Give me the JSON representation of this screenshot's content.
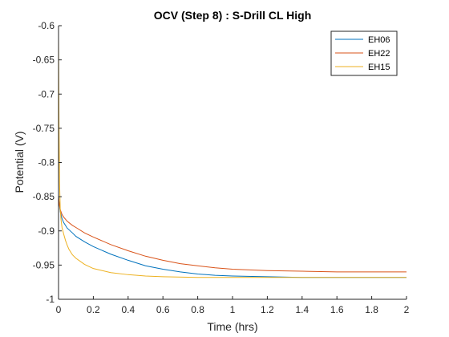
{
  "chart_data": {
    "type": "line",
    "title": "OCV (Step 8) : S-Drill CL High",
    "xlabel": "Time (hrs)",
    "ylabel": "Potential (V)",
    "xlim": [
      0,
      2
    ],
    "ylim": [
      -1,
      -0.6
    ],
    "xticks": [
      "0",
      "0.2",
      "0.4",
      "0.6",
      "0.8",
      "1",
      "1.2",
      "1.4",
      "1.6",
      "1.8",
      "2"
    ],
    "yticks": [
      "-0.6",
      "-0.65",
      "-0.7",
      "-0.75",
      "-0.8",
      "-0.85",
      "-0.9",
      "-0.95",
      "-1"
    ],
    "grid": false,
    "legend_position": "top-right",
    "series": [
      {
        "name": "EH06",
        "color": "#0072BD",
        "x": [
          0,
          0.005,
          0.01,
          0.02,
          0.03,
          0.05,
          0.08,
          0.1,
          0.15,
          0.2,
          0.3,
          0.4,
          0.5,
          0.6,
          0.7,
          0.8,
          0.9,
          1.0,
          1.2,
          1.4,
          1.6,
          1.8,
          2.0
        ],
        "y": [
          -0.85,
          -0.862,
          -0.872,
          -0.882,
          -0.888,
          -0.896,
          -0.903,
          -0.908,
          -0.916,
          -0.923,
          -0.934,
          -0.943,
          -0.951,
          -0.956,
          -0.96,
          -0.963,
          -0.965,
          -0.966,
          -0.967,
          -0.968,
          -0.968,
          -0.968,
          -0.968
        ]
      },
      {
        "name": "EH22",
        "color": "#D95319",
        "x": [
          0,
          0.005,
          0.01,
          0.02,
          0.03,
          0.05,
          0.08,
          0.1,
          0.15,
          0.2,
          0.3,
          0.4,
          0.5,
          0.6,
          0.7,
          0.8,
          0.9,
          1.0,
          1.2,
          1.4,
          1.6,
          1.8,
          2.0
        ],
        "y": [
          -0.85,
          -0.862,
          -0.869,
          -0.876,
          -0.88,
          -0.886,
          -0.892,
          -0.895,
          -0.903,
          -0.909,
          -0.92,
          -0.929,
          -0.937,
          -0.943,
          -0.948,
          -0.951,
          -0.954,
          -0.956,
          -0.958,
          -0.959,
          -0.96,
          -0.96,
          -0.96
        ]
      },
      {
        "name": "EH15",
        "color": "#EDB120",
        "x": [
          0,
          0.003,
          0.006,
          0.01,
          0.015,
          0.02,
          0.03,
          0.04,
          0.05,
          0.06,
          0.08,
          0.1,
          0.15,
          0.2,
          0.3,
          0.4,
          0.5,
          0.6,
          0.8,
          1.0,
          1.2,
          1.4,
          1.6,
          1.8,
          2.0
        ],
        "y": [
          -0.615,
          -0.75,
          -0.83,
          -0.87,
          -0.885,
          -0.895,
          -0.905,
          -0.914,
          -0.921,
          -0.927,
          -0.935,
          -0.94,
          -0.949,
          -0.955,
          -0.961,
          -0.964,
          -0.966,
          -0.967,
          -0.968,
          -0.968,
          -0.968,
          -0.968,
          -0.968,
          -0.968,
          -0.968
        ]
      }
    ]
  }
}
